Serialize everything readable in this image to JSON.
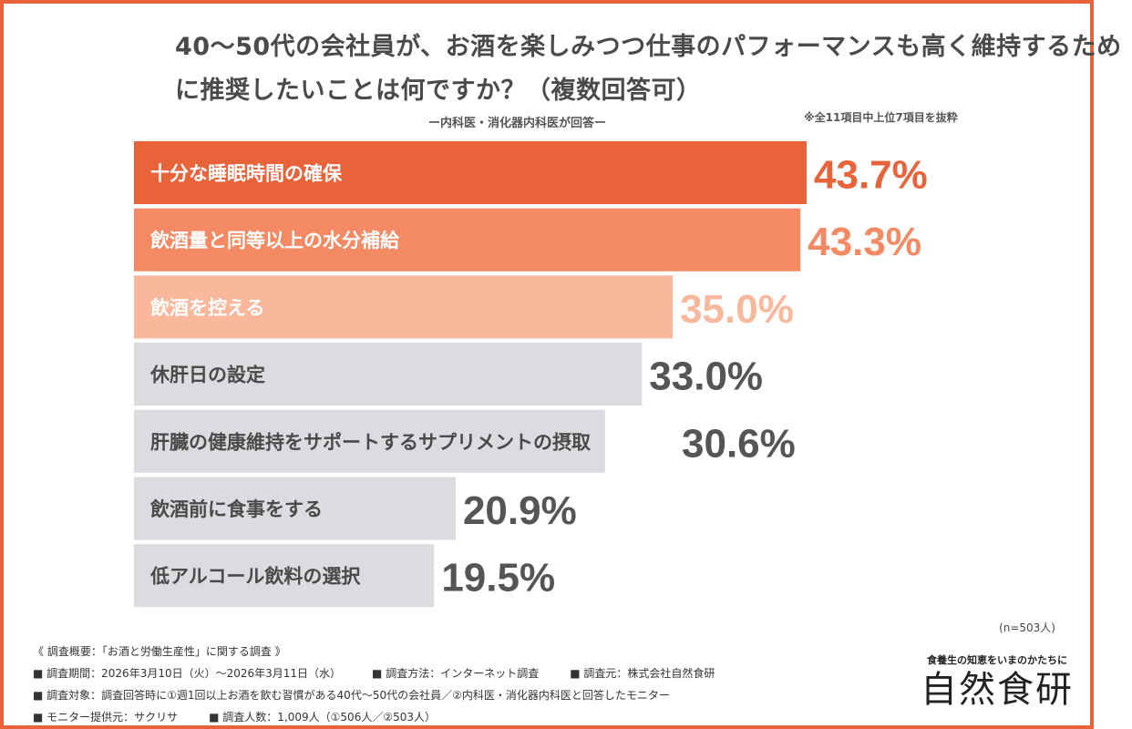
{
  "chart_data": {
    "type": "bar",
    "orientation": "horizontal",
    "title": "40〜50代の会社員が、お酒を楽しみつつ仕事のパフォーマンスも高く維持するために推奨したいことは何ですか？（複数回答可）",
    "subtitle": "ー内科医・消化器内科医が回答ー",
    "note": "※全11項目中上位7項目を抜粋",
    "categories": [
      "十分な睡眠時間の確保",
      "飲酒量と同等以上の水分補給",
      "飲酒を控える",
      "休肝日の設定",
      "肝臓の健康維持をサポートするサプリメントの摂取",
      "飲酒前に食事をする",
      "低アルコール飲料の選択"
    ],
    "values": [
      43.7,
      43.3,
      35.0,
      33.0,
      30.6,
      20.9,
      19.5
    ],
    "value_labels": [
      "43.7%",
      "43.3%",
      "35.0%",
      "33.0%",
      "30.6%",
      "20.9%",
      "19.5%"
    ],
    "unit": "%",
    "bar_colors": [
      "#e8623a",
      "#f38a63",
      "#f9b89c",
      "#dcdbe0",
      "#dcdbe0",
      "#dcdbe0",
      "#dcdbe0"
    ],
    "label_colors": [
      "#ffffff",
      "#ffffff",
      "#ffffff",
      "#4a4a4a",
      "#4a4a4a",
      "#4a4a4a",
      "#4a4a4a"
    ],
    "value_colors": [
      "#e8623a",
      "#f38a63",
      "#f9b89c",
      "#555555",
      "#555555",
      "#555555",
      "#555555"
    ],
    "sample": "(n=503人)"
  },
  "footer": {
    "heading": "《 調査概要：「お酒と労働生産性」に関する調査 》",
    "period": "■ 調査期間：2026年3月10日（火）〜2026年3月11日（水）",
    "method": "■ 調査方法：インターネット調査",
    "source": "■ 調査元：株式会社自然食研",
    "target": "■ 調査対象：調査回答時に①週1回以上お酒を飲む習慣がある40代〜50代の会社員／②内科医・消化器内科医と回答したモニター",
    "provider": "■ モニター提供元：サクリサ",
    "count": "■ 調査人数：1,009人（①506人／②503人）"
  },
  "logo": {
    "tagline": "食養生の知恵をいまのかたちに",
    "name": "自然食研"
  },
  "accent": "#e8623a"
}
